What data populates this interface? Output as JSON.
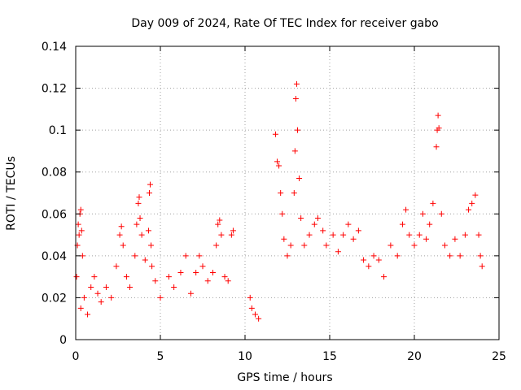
{
  "chart_data": {
    "type": "scatter",
    "title": "Day 009 of 2024, Rate Of TEC Index for receiver gabo",
    "xlabel": "GPS time / hours",
    "ylabel": "ROTI / TECUs",
    "xlim": [
      0,
      25
    ],
    "ylim": [
      0,
      0.14
    ],
    "x_ticks": [
      0,
      5,
      10,
      15,
      20,
      25
    ],
    "x_tick_labels": [
      "0",
      "5",
      "10",
      "15",
      "20",
      "25"
    ],
    "y_ticks": [
      0,
      0.02,
      0.04,
      0.06,
      0.08,
      0.1,
      0.12,
      0.14
    ],
    "y_tick_labels": [
      "0",
      "0.02",
      "0.04",
      "0.06",
      "0.08",
      "0.1",
      "0.12",
      "0.14"
    ],
    "grid": true,
    "marker": "+",
    "series_color": "#ff0000",
    "series": [
      {
        "name": "ROTI",
        "points": [
          [
            0.05,
            0.03
          ],
          [
            0.1,
            0.045
          ],
          [
            0.15,
            0.055
          ],
          [
            0.2,
            0.05
          ],
          [
            0.25,
            0.06
          ],
          [
            0.3,
            0.062
          ],
          [
            0.35,
            0.052
          ],
          [
            0.4,
            0.04
          ],
          [
            0.3,
            0.015
          ],
          [
            0.5,
            0.02
          ],
          [
            0.7,
            0.012
          ],
          [
            0.9,
            0.025
          ],
          [
            1.1,
            0.03
          ],
          [
            1.3,
            0.022
          ],
          [
            1.5,
            0.018
          ],
          [
            1.8,
            0.025
          ],
          [
            2.1,
            0.02
          ],
          [
            2.4,
            0.035
          ],
          [
            2.6,
            0.05
          ],
          [
            2.7,
            0.054
          ],
          [
            2.8,
            0.045
          ],
          [
            3.0,
            0.03
          ],
          [
            3.2,
            0.025
          ],
          [
            3.5,
            0.04
          ],
          [
            3.6,
            0.055
          ],
          [
            3.7,
            0.065
          ],
          [
            3.75,
            0.068
          ],
          [
            3.8,
            0.058
          ],
          [
            3.9,
            0.05
          ],
          [
            4.1,
            0.038
          ],
          [
            4.3,
            0.052
          ],
          [
            4.35,
            0.07
          ],
          [
            4.4,
            0.074
          ],
          [
            4.45,
            0.045
          ],
          [
            4.5,
            0.035
          ],
          [
            4.7,
            0.028
          ],
          [
            5.0,
            0.02
          ],
          [
            5.5,
            0.03
          ],
          [
            5.8,
            0.025
          ],
          [
            6.2,
            0.032
          ],
          [
            6.5,
            0.04
          ],
          [
            6.8,
            0.022
          ],
          [
            7.1,
            0.032
          ],
          [
            7.3,
            0.04
          ],
          [
            7.5,
            0.035
          ],
          [
            7.8,
            0.028
          ],
          [
            8.1,
            0.032
          ],
          [
            8.3,
            0.045
          ],
          [
            8.4,
            0.055
          ],
          [
            8.5,
            0.057
          ],
          [
            8.6,
            0.05
          ],
          [
            8.8,
            0.03
          ],
          [
            9.0,
            0.028
          ],
          [
            9.2,
            0.05
          ],
          [
            9.3,
            0.052
          ],
          [
            10.3,
            0.02
          ],
          [
            10.4,
            0.015
          ],
          [
            10.6,
            0.012
          ],
          [
            10.8,
            0.01
          ],
          [
            11.8,
            0.098
          ],
          [
            11.9,
            0.085
          ],
          [
            12.0,
            0.083
          ],
          [
            12.1,
            0.07
          ],
          [
            12.2,
            0.06
          ],
          [
            12.3,
            0.048
          ],
          [
            12.5,
            0.04
          ],
          [
            12.7,
            0.045
          ],
          [
            12.9,
            0.07
          ],
          [
            12.95,
            0.09
          ],
          [
            13.0,
            0.115
          ],
          [
            13.05,
            0.122
          ],
          [
            13.1,
            0.1
          ],
          [
            13.2,
            0.077
          ],
          [
            13.3,
            0.058
          ],
          [
            13.5,
            0.045
          ],
          [
            13.8,
            0.05
          ],
          [
            14.1,
            0.055
          ],
          [
            14.3,
            0.058
          ],
          [
            14.6,
            0.052
          ],
          [
            14.8,
            0.045
          ],
          [
            15.2,
            0.05
          ],
          [
            15.5,
            0.042
          ],
          [
            15.8,
            0.05
          ],
          [
            16.1,
            0.055
          ],
          [
            16.4,
            0.048
          ],
          [
            16.7,
            0.052
          ],
          [
            17.0,
            0.038
          ],
          [
            17.3,
            0.035
          ],
          [
            17.6,
            0.04
          ],
          [
            17.9,
            0.038
          ],
          [
            18.2,
            0.03
          ],
          [
            18.6,
            0.045
          ],
          [
            19.0,
            0.04
          ],
          [
            19.3,
            0.055
          ],
          [
            19.5,
            0.062
          ],
          [
            19.7,
            0.05
          ],
          [
            20.0,
            0.045
          ],
          [
            20.3,
            0.05
          ],
          [
            20.5,
            0.06
          ],
          [
            20.7,
            0.048
          ],
          [
            20.9,
            0.055
          ],
          [
            21.1,
            0.065
          ],
          [
            21.3,
            0.092
          ],
          [
            21.35,
            0.1
          ],
          [
            21.4,
            0.107
          ],
          [
            21.45,
            0.101
          ],
          [
            21.6,
            0.06
          ],
          [
            21.8,
            0.045
          ],
          [
            22.1,
            0.04
          ],
          [
            22.4,
            0.048
          ],
          [
            22.7,
            0.04
          ],
          [
            23.0,
            0.05
          ],
          [
            23.2,
            0.062
          ],
          [
            23.4,
            0.065
          ],
          [
            23.6,
            0.069
          ],
          [
            23.8,
            0.05
          ],
          [
            23.9,
            0.04
          ],
          [
            24.0,
            0.035
          ]
        ]
      }
    ]
  }
}
